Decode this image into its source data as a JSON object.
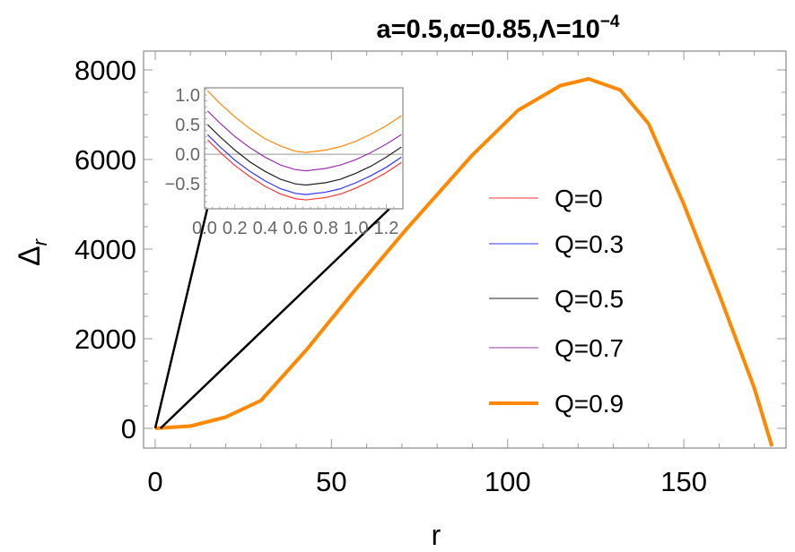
{
  "chart_data": {
    "type": "line",
    "title": "a=0.5,α=0.85,Λ=10",
    "title_superscript": "−4",
    "xlabel": "r",
    "ylabel": "Δ",
    "ylabel_subscript": "r",
    "xlim": [
      -3.3,
      179
    ],
    "ylim": [
      -440,
      8420
    ],
    "xticks": [
      0,
      50,
      100,
      150
    ],
    "yticks": [
      0,
      2000,
      4000,
      6000,
      8000
    ],
    "legend_position": "right",
    "legend": [
      {
        "label": "Q=0",
        "color": "#ff3333",
        "width": "thin"
      },
      {
        "label": "Q=0.3",
        "color": "#3333ff",
        "width": "thin"
      },
      {
        "label": "Q=0.5",
        "color": "#222222",
        "width": "thin"
      },
      {
        "label": "Q=0.7",
        "color": "#9933aa",
        "width": "thin"
      },
      {
        "label": "Q=0.9",
        "color": "#ff8800",
        "width": "thick"
      }
    ],
    "main_x": [
      0,
      10,
      20,
      30,
      43,
      56,
      71,
      90,
      103,
      115,
      123,
      132,
      140,
      150,
      160,
      170,
      175
    ],
    "main_y": [
      0,
      50,
      250,
      620,
      1760,
      3020,
      4420,
      6100,
      7100,
      7650,
      7800,
      7550,
      6800,
      5000,
      3000,
      900,
      -400
    ],
    "inset": {
      "xlim": [
        0,
        1.31
      ],
      "ylim": [
        -0.92,
        1.12
      ],
      "xticks": [
        "0.0",
        "0.2",
        "0.4",
        "0.6",
        "0.8",
        "1.0",
        "1.2"
      ],
      "yticks": [
        "1.0",
        "0.5",
        "0.0",
        "−0.5"
      ],
      "x": [
        0.02,
        0.1,
        0.2,
        0.3,
        0.4,
        0.5,
        0.6,
        0.67,
        0.8,
        0.9,
        1.0,
        1.1,
        1.2,
        1.3
      ],
      "series": [
        {
          "name": "Q=0",
          "color": "#ff3333",
          "values": [
            0.24,
            0.04,
            -0.19,
            -0.38,
            -0.54,
            -0.67,
            -0.75,
            -0.77,
            -0.73,
            -0.67,
            -0.57,
            -0.45,
            -0.31,
            -0.14
          ]
        },
        {
          "name": "Q=0.3",
          "color": "#3333ff",
          "values": [
            0.33,
            0.13,
            -0.1,
            -0.29,
            -0.45,
            -0.58,
            -0.66,
            -0.68,
            -0.64,
            -0.58,
            -0.48,
            -0.36,
            -0.22,
            -0.05
          ]
        },
        {
          "name": "Q=0.5",
          "color": "#222222",
          "values": [
            0.5,
            0.3,
            0.07,
            -0.13,
            -0.29,
            -0.42,
            -0.5,
            -0.52,
            -0.48,
            -0.42,
            -0.32,
            -0.2,
            -0.05,
            0.12
          ]
        },
        {
          "name": "Q=0.7",
          "color": "#9933aa",
          "values": [
            0.73,
            0.53,
            0.3,
            0.11,
            -0.05,
            -0.18,
            -0.26,
            -0.28,
            -0.24,
            -0.18,
            -0.09,
            0.03,
            0.17,
            0.33
          ]
        },
        {
          "name": "Q=0.9",
          "color": "#ff8800",
          "values": [
            1.07,
            0.86,
            0.63,
            0.43,
            0.26,
            0.14,
            0.05,
            0.03,
            0.07,
            0.13,
            0.22,
            0.34,
            0.48,
            0.65
          ]
        }
      ]
    }
  }
}
